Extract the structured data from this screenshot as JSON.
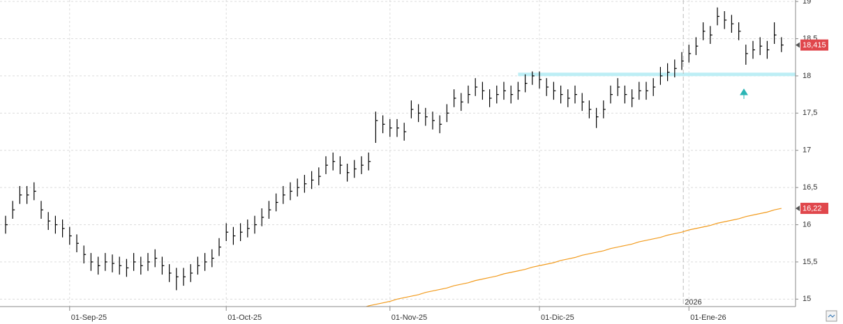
{
  "chart_data": {
    "type": "ohlc",
    "categories": [
      null,
      null,
      null,
      null,
      null,
      null,
      null,
      null,
      null,
      "01-Sep-25",
      null,
      null,
      null,
      null,
      null,
      null,
      null,
      null,
      null,
      null,
      null,
      null,
      null,
      null,
      null,
      null,
      null,
      null,
      null,
      null,
      null,
      "01-Oct-25",
      null,
      null,
      null,
      null,
      null,
      null,
      null,
      null,
      null,
      null,
      null,
      null,
      null,
      null,
      null,
      null,
      null,
      null,
      null,
      null,
      null,
      null,
      "01-Nov-25",
      null,
      null,
      null,
      null,
      null,
      null,
      null,
      null,
      null,
      null,
      null,
      null,
      null,
      null,
      null,
      null,
      null,
      null,
      null,
      null,
      "01-Dic-25",
      null,
      null,
      null,
      null,
      null,
      null,
      null,
      null,
      null,
      null,
      null,
      null,
      null,
      null,
      null,
      null,
      null,
      null,
      null,
      null,
      "01-Ene-26",
      null,
      null,
      null,
      null,
      null,
      null,
      null,
      null,
      null,
      null,
      null,
      null,
      null
    ],
    "high": [
      16.12,
      16.32,
      16.52,
      16.52,
      16.57,
      16.32,
      16.17,
      16.12,
      16.07,
      15.97,
      15.87,
      15.72,
      15.62,
      15.57,
      15.62,
      15.6,
      15.57,
      15.54,
      15.62,
      15.57,
      15.62,
      15.67,
      15.57,
      15.47,
      15.42,
      15.42,
      15.47,
      15.57,
      15.62,
      15.67,
      15.82,
      16.02,
      15.97,
      16.02,
      16.07,
      16.12,
      16.22,
      16.32,
      16.42,
      16.52,
      16.57,
      16.62,
      16.67,
      16.72,
      16.77,
      16.92,
      16.97,
      16.92,
      16.82,
      16.87,
      16.92,
      16.97,
      17.52,
      17.47,
      17.42,
      17.42,
      17.37,
      17.67,
      17.62,
      17.57,
      17.52,
      17.47,
      17.62,
      17.82,
      17.77,
      17.87,
      17.97,
      17.92,
      17.82,
      17.87,
      17.92,
      17.87,
      17.92,
      18.02,
      18.06,
      18.06,
      17.97,
      17.92,
      17.87,
      17.82,
      17.87,
      17.77,
      17.67,
      17.57,
      17.67,
      17.87,
      17.97,
      17.87,
      17.82,
      17.92,
      17.92,
      17.97,
      18.12,
      18.17,
      18.22,
      18.32,
      18.42,
      18.52,
      18.72,
      18.67,
      18.92,
      18.87,
      18.82,
      18.72,
      18.42,
      18.47,
      18.52,
      18.47,
      18.72,
      18.52
    ],
    "low": [
      15.88,
      16.08,
      16.28,
      16.28,
      16.33,
      16.08,
      15.93,
      15.88,
      15.83,
      15.73,
      15.63,
      15.48,
      15.38,
      15.33,
      15.38,
      15.36,
      15.33,
      15.3,
      15.38,
      15.33,
      15.38,
      15.43,
      15.33,
      15.23,
      15.12,
      15.18,
      15.23,
      15.33,
      15.38,
      15.43,
      15.58,
      15.78,
      15.73,
      15.78,
      15.83,
      15.88,
      15.98,
      16.08,
      16.18,
      16.28,
      16.33,
      16.38,
      16.43,
      16.48,
      16.53,
      16.68,
      16.73,
      16.68,
      16.58,
      16.63,
      16.68,
      16.73,
      17.1,
      17.23,
      17.18,
      17.18,
      17.13,
      17.43,
      17.38,
      17.33,
      17.28,
      17.23,
      17.38,
      17.58,
      17.53,
      17.63,
      17.73,
      17.68,
      17.58,
      17.63,
      17.68,
      17.63,
      17.68,
      17.78,
      17.88,
      17.83,
      17.73,
      17.68,
      17.63,
      17.58,
      17.63,
      17.53,
      17.43,
      17.3,
      17.43,
      17.63,
      17.73,
      17.63,
      17.58,
      17.68,
      17.68,
      17.73,
      17.88,
      17.93,
      17.98,
      18.08,
      18.18,
      18.28,
      18.48,
      18.43,
      18.68,
      18.63,
      18.58,
      18.48,
      18.15,
      18.23,
      18.28,
      18.23,
      18.43,
      18.32
    ],
    "close": [
      16.0,
      16.2,
      16.4,
      16.4,
      16.45,
      16.2,
      16.05,
      16.0,
      15.95,
      15.85,
      15.75,
      15.6,
      15.5,
      15.45,
      15.5,
      15.48,
      15.45,
      15.42,
      15.5,
      15.45,
      15.5,
      15.55,
      15.45,
      15.35,
      15.3,
      15.3,
      15.35,
      15.45,
      15.5,
      15.55,
      15.7,
      15.9,
      15.85,
      15.9,
      15.95,
      16.0,
      16.1,
      16.2,
      16.3,
      16.4,
      16.45,
      16.5,
      16.55,
      16.6,
      16.65,
      16.8,
      16.85,
      16.8,
      16.7,
      16.75,
      16.8,
      16.85,
      17.4,
      17.35,
      17.3,
      17.3,
      17.25,
      17.55,
      17.5,
      17.45,
      17.4,
      17.35,
      17.5,
      17.7,
      17.65,
      17.75,
      17.85,
      17.8,
      17.7,
      17.75,
      17.8,
      17.75,
      17.8,
      17.9,
      18.0,
      17.95,
      17.85,
      17.8,
      17.75,
      17.7,
      17.75,
      17.65,
      17.55,
      17.45,
      17.55,
      17.75,
      17.85,
      17.75,
      17.7,
      17.8,
      17.8,
      17.85,
      18.0,
      18.05,
      18.1,
      18.2,
      18.3,
      18.4,
      18.6,
      18.55,
      18.8,
      18.75,
      18.7,
      18.6,
      18.3,
      18.35,
      18.4,
      18.35,
      18.55,
      18.415
    ],
    "bar_color": "#000000",
    "average": {
      "color": "#f29b1d",
      "values": [
        null,
        null,
        null,
        null,
        null,
        null,
        null,
        null,
        null,
        null,
        null,
        null,
        null,
        null,
        null,
        null,
        null,
        null,
        null,
        null,
        null,
        null,
        null,
        null,
        null,
        null,
        null,
        null,
        null,
        null,
        null,
        null,
        null,
        null,
        null,
        null,
        null,
        null,
        null,
        null,
        null,
        null,
        null,
        null,
        null,
        null,
        null,
        null,
        null,
        14.86,
        14.88,
        14.91,
        14.93,
        14.95,
        14.97,
        15.0,
        15.02,
        15.04,
        15.06,
        15.09,
        15.11,
        15.13,
        15.15,
        15.18,
        15.2,
        15.22,
        15.25,
        15.27,
        15.29,
        15.31,
        15.34,
        15.36,
        15.38,
        15.4,
        15.43,
        15.45,
        15.47,
        15.49,
        15.52,
        15.54,
        15.56,
        15.59,
        15.61,
        15.63,
        15.65,
        15.68,
        15.7,
        15.72,
        15.74,
        15.77,
        15.79,
        15.81,
        15.83,
        15.86,
        15.88,
        15.9,
        15.93,
        15.95,
        15.97,
        15.99,
        16.02,
        16.04,
        16.06,
        16.08,
        16.11,
        16.13,
        16.15,
        16.17,
        16.2,
        16.22
      ]
    },
    "support_line": {
      "value": 18.02,
      "color": "#bdeef5"
    },
    "year_marker": "2026",
    "last_value_labels": [
      {
        "value": 18.415,
        "label": "18,415"
      },
      {
        "value": 16.22,
        "label": "16,22"
      }
    ],
    "ylim": [
      14.9,
      19.02
    ],
    "yticks": [
      {
        "value": 15,
        "label": "15"
      },
      {
        "value": 15.5,
        "label": "15,5"
      },
      {
        "value": 16,
        "label": "16"
      },
      {
        "value": 16.5,
        "label": "16,5"
      },
      {
        "value": 17,
        "label": "17"
      },
      {
        "value": 17.5,
        "label": "17,5"
      },
      {
        "value": 18,
        "label": "18"
      },
      {
        "value": 18.5,
        "label": "18,5"
      },
      {
        "value": 19,
        "label": "19"
      }
    ],
    "grid": true
  }
}
